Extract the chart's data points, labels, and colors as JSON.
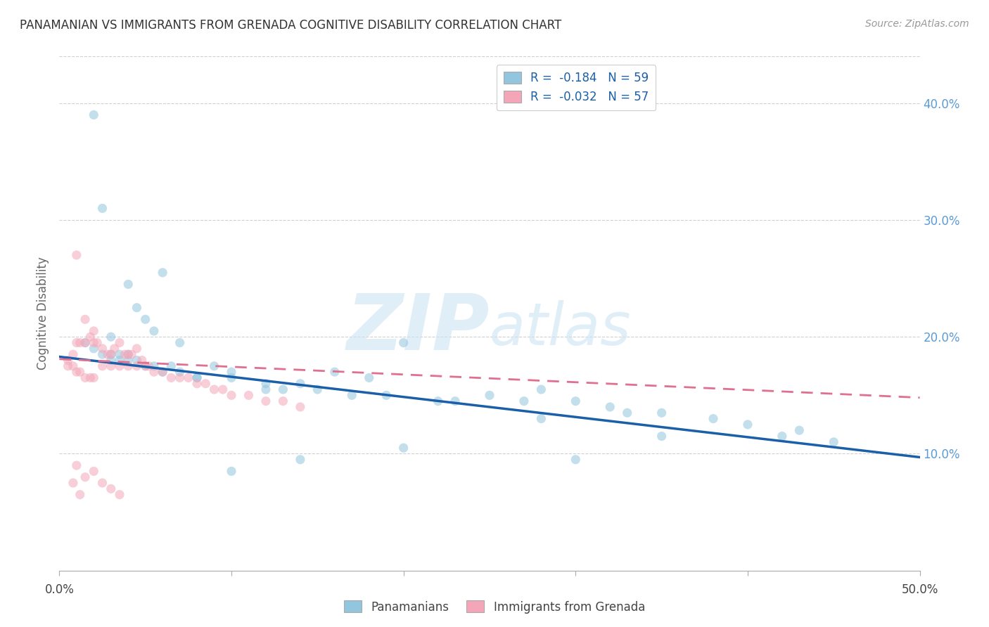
{
  "title": "PANAMANIAN VS IMMIGRANTS FROM GRENADA COGNITIVE DISABILITY CORRELATION CHART",
  "source": "Source: ZipAtlas.com",
  "ylabel": "Cognitive Disability",
  "right_yticks": [
    "10.0%",
    "20.0%",
    "30.0%",
    "40.0%"
  ],
  "right_ytick_vals": [
    0.1,
    0.2,
    0.3,
    0.4
  ],
  "xlim": [
    0.0,
    0.5
  ],
  "ylim": [
    0.0,
    0.44
  ],
  "blue_scatter_x": [
    0.015,
    0.02,
    0.02,
    0.025,
    0.025,
    0.03,
    0.03,
    0.03,
    0.035,
    0.035,
    0.04,
    0.04,
    0.04,
    0.045,
    0.045,
    0.05,
    0.05,
    0.055,
    0.055,
    0.06,
    0.06,
    0.065,
    0.07,
    0.07,
    0.08,
    0.08,
    0.09,
    0.1,
    0.1,
    0.12,
    0.12,
    0.13,
    0.14,
    0.15,
    0.16,
    0.17,
    0.18,
    0.19,
    0.2,
    0.22,
    0.23,
    0.25,
    0.27,
    0.28,
    0.3,
    0.32,
    0.33,
    0.35,
    0.38,
    0.4,
    0.43,
    0.45,
    0.14,
    0.2,
    0.28,
    0.3,
    0.35,
    0.42,
    0.1
  ],
  "blue_scatter_y": [
    0.195,
    0.39,
    0.19,
    0.31,
    0.185,
    0.2,
    0.185,
    0.18,
    0.185,
    0.18,
    0.245,
    0.185,
    0.18,
    0.225,
    0.18,
    0.215,
    0.175,
    0.205,
    0.175,
    0.255,
    0.17,
    0.175,
    0.195,
    0.17,
    0.165,
    0.165,
    0.175,
    0.17,
    0.165,
    0.16,
    0.155,
    0.155,
    0.16,
    0.155,
    0.17,
    0.15,
    0.165,
    0.15,
    0.195,
    0.145,
    0.145,
    0.15,
    0.145,
    0.155,
    0.145,
    0.14,
    0.135,
    0.135,
    0.13,
    0.125,
    0.12,
    0.11,
    0.095,
    0.105,
    0.13,
    0.095,
    0.115,
    0.115,
    0.085
  ],
  "pink_scatter_x": [
    0.005,
    0.005,
    0.008,
    0.008,
    0.01,
    0.01,
    0.01,
    0.012,
    0.012,
    0.015,
    0.015,
    0.015,
    0.018,
    0.018,
    0.02,
    0.02,
    0.02,
    0.022,
    0.025,
    0.025,
    0.028,
    0.03,
    0.03,
    0.032,
    0.035,
    0.035,
    0.038,
    0.04,
    0.04,
    0.042,
    0.045,
    0.045,
    0.048,
    0.05,
    0.052,
    0.055,
    0.06,
    0.065,
    0.07,
    0.075,
    0.08,
    0.085,
    0.09,
    0.095,
    0.1,
    0.11,
    0.12,
    0.13,
    0.14,
    0.01,
    0.015,
    0.02,
    0.025,
    0.03,
    0.035,
    0.008,
    0.012
  ],
  "pink_scatter_y": [
    0.18,
    0.175,
    0.185,
    0.175,
    0.27,
    0.195,
    0.17,
    0.195,
    0.17,
    0.215,
    0.195,
    0.165,
    0.2,
    0.165,
    0.205,
    0.195,
    0.165,
    0.195,
    0.19,
    0.175,
    0.185,
    0.185,
    0.175,
    0.19,
    0.195,
    0.175,
    0.185,
    0.185,
    0.175,
    0.185,
    0.19,
    0.175,
    0.18,
    0.175,
    0.175,
    0.17,
    0.17,
    0.165,
    0.165,
    0.165,
    0.16,
    0.16,
    0.155,
    0.155,
    0.15,
    0.15,
    0.145,
    0.145,
    0.14,
    0.09,
    0.08,
    0.085,
    0.075,
    0.07,
    0.065,
    0.075,
    0.065
  ],
  "blue_line_x": [
    0.0,
    0.5
  ],
  "blue_line_y": [
    0.183,
    0.097
  ],
  "pink_line_x": [
    0.0,
    0.5
  ],
  "pink_line_y": [
    0.181,
    0.148
  ],
  "scatter_alpha": 0.55,
  "scatter_size": 90,
  "blue_color": "#92c5de",
  "pink_color": "#f4a6b8",
  "blue_line_color": "#1a5fa8",
  "pink_line_color": "#e07090",
  "watermark_zip": "ZIP",
  "watermark_atlas": "atlas",
  "title_color": "#333333",
  "source_color": "#999999",
  "axis_label_color": "#666666",
  "right_axis_color": "#5b9bd5",
  "grid_color": "#d0d0d0",
  "legend_label_color": "#1a5fa8"
}
